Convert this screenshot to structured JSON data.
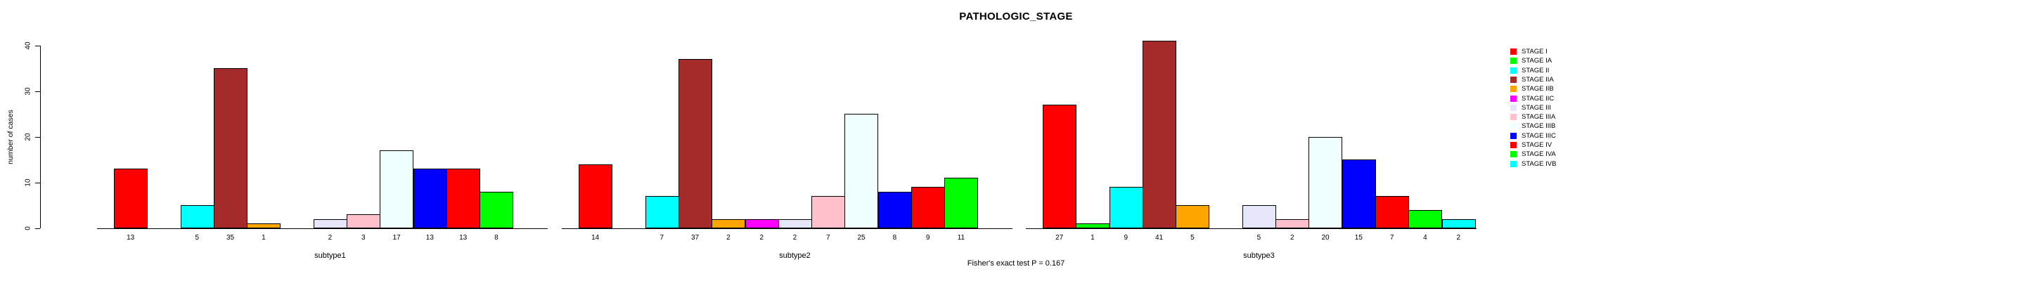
{
  "title": "PATHOLOGIC_STAGE",
  "footer_annotation": "Fisher's exact test P = 0.167",
  "y_axis": {
    "label": "number of cases",
    "tick_labels": [
      "0",
      "10",
      "20",
      "30",
      "40"
    ]
  },
  "legend": {
    "position": "right",
    "items": [
      {
        "label": "STAGE I",
        "color": "#FF0000"
      },
      {
        "label": "STAGE IA",
        "color": "#00FF00"
      },
      {
        "label": "STAGE II",
        "color": "#00FFFF"
      },
      {
        "label": "STAGE IIA",
        "color": "#A52A2A"
      },
      {
        "label": "STAGE IIB",
        "color": "#FFA500"
      },
      {
        "label": "STAGE IIC",
        "color": "#FF00FF"
      },
      {
        "label": "STAGE III",
        "color": "#E6E6FA"
      },
      {
        "label": "STAGE IIIA",
        "color": "#FFC0CB"
      },
      {
        "label": "STAGE IIIB",
        "color": "#F0FFFF"
      },
      {
        "label": "STAGE IIIC",
        "color": "#0000FF"
      },
      {
        "label": "STAGE IV",
        "color": "#FF0000"
      },
      {
        "label": "STAGE IVA",
        "color": "#00FF00"
      },
      {
        "label": "STAGE IVB",
        "color": "#00FFFF"
      }
    ]
  },
  "chart_data": {
    "type": "bar",
    "title": "PATHOLOGIC_STAGE",
    "xlabel": "",
    "ylabel": "number of cases",
    "ylim": [
      0,
      40
    ],
    "y_ticks": [
      0,
      10,
      20,
      30,
      40
    ],
    "grid": false,
    "legend_position": "right",
    "bar_value_labels_shown": true,
    "annotation": "Fisher's exact test P = 0.167",
    "categories": [
      "subtype1",
      "subtype2",
      "subtype3"
    ],
    "stage_labels": [
      "STAGE I",
      "STAGE IA",
      "STAGE II",
      "STAGE IIA",
      "STAGE IIB",
      "STAGE IIC",
      "STAGE III",
      "STAGE IIIA",
      "STAGE IIIB",
      "STAGE IIIC",
      "STAGE IV",
      "STAGE IVA",
      "STAGE IVB"
    ],
    "stage_colors": [
      "#FF0000",
      "#00FF00",
      "#00FFFF",
      "#A52A2A",
      "#FFA500",
      "#FF00FF",
      "#E6E6FA",
      "#FFC0CB",
      "#F0FFFF",
      "#0000FF",
      "#FF0000",
      "#00FF00",
      "#00FFFF"
    ],
    "series": [
      {
        "name": "subtype1",
        "values": [
          13,
          0,
          5,
          35,
          1,
          0,
          2,
          3,
          17,
          13,
          13,
          8,
          0
        ]
      },
      {
        "name": "subtype2",
        "values": [
          14,
          0,
          7,
          37,
          2,
          2,
          2,
          7,
          25,
          8,
          9,
          11,
          0
        ]
      },
      {
        "name": "subtype3",
        "values": [
          27,
          1,
          9,
          41,
          5,
          0,
          5,
          2,
          20,
          15,
          7,
          4,
          2
        ]
      }
    ]
  }
}
